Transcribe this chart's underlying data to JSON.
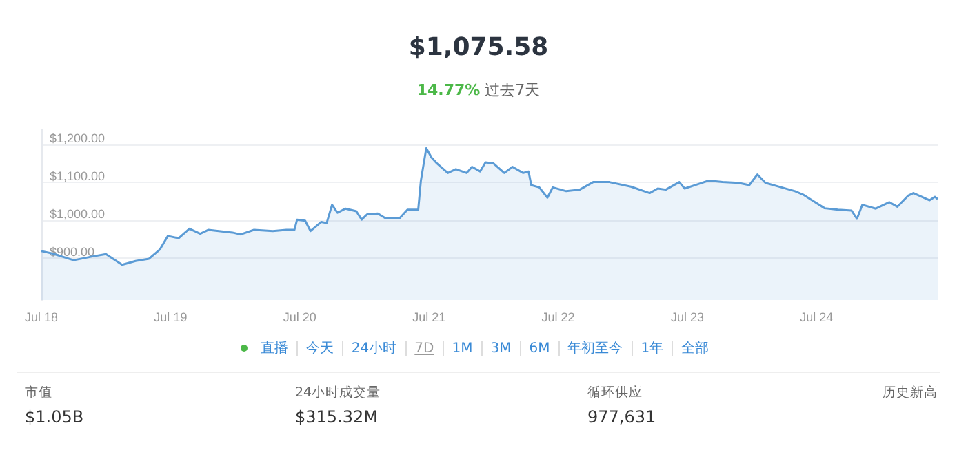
{
  "chart_data": {
    "type": "area",
    "title": "$1,075.58",
    "subtitle": "14.77% 过去7天",
    "annotations": [
      "直播",
      "今天",
      "24小时",
      "7D",
      "1M",
      "3M",
      "6M",
      "年初至今",
      "1年",
      "全部",
      "市值",
      "$1.05B",
      "24小时成交量",
      "$315.32M",
      "循环供应",
      "977,631",
      "历史新高"
    ],
    "x": [
      "--07-18T00:00",
      "--07-18T02:00",
      "--07-18T06:00",
      "--07-18T09:30",
      "--07-18T12:00",
      "--07-18T15:00",
      "--07-18T17:30",
      "--07-18T20:00",
      "--07-18T22:00",
      "--07-18T23:30",
      "--07-19T01:30",
      "--07-19T03:30",
      "--07-19T05:30",
      "--07-19T07:00",
      "--07-19T11:30",
      "--07-19T13:00",
      "--07-19T15:30",
      "--07-19T19:00",
      "--07-19T21:30",
      "--07-19T23:00",
      "--07-19T23:30",
      "--07-20T01:00",
      "--07-20T02:00",
      "--07-20T04:00",
      "--07-20T05:00",
      "--07-20T06:00",
      "--07-20T07:00",
      "--07-20T08:30",
      "--07-20T10:30",
      "--07-20T11:30",
      "--07-20T12:30",
      "--07-20T14:30",
      "--07-20T16:00",
      "--07-20T18:30",
      "--07-20T20:00",
      "--07-20T22:00",
      "--07-20T22:30",
      "--07-20T23:30",
      "--07-21T00:30",
      "--07-21T01:30",
      "--07-21T03:30",
      "--07-21T05:00",
      "--07-21T07:00",
      "--07-21T08:00",
      "--07-21T09:30",
      "--07-21T10:30",
      "--07-21T12:00",
      "--07-21T14:00",
      "--07-21T15:30",
      "--07-21T17:30",
      "--07-21T18:30",
      "--07-21T19:00",
      "--07-21T20:30",
      "--07-21T22:00",
      "--07-21T23:00",
      "--07-22T01:30",
      "--07-22T04:00",
      "--07-22T06:30",
      "--07-22T09:30",
      "--07-22T13:30",
      "--07-22T17:00",
      "--07-22T18:30",
      "--07-22T20:00",
      "--07-22T22:30",
      "--07-22T23:30",
      "--07-23T04:00",
      "--07-23T06:30",
      "--07-23T09:30",
      "--07-23T11:30",
      "--07-23T13:00",
      "--07-23T14:30",
      "--07-23T17:30",
      "--07-23T20:00",
      "--07-23T21:30",
      "--07-23T23:30",
      "--07-24T01:30",
      "--07-24T04:00",
      "--07-24T06:30",
      "--07-24T07:30",
      "--07-24T08:30",
      "--07-24T11:00",
      "--07-24T13:30",
      "--07-24T15:00",
      "--07-24T17:00",
      "--07-24T18:00",
      "--07-24T21:00",
      "--07-24T22:00",
      "--07-24T22:30"
    ],
    "values": [
      919,
      913,
      895,
      905,
      911,
      883,
      893,
      899,
      923,
      959,
      953,
      978,
      965,
      975,
      968,
      963,
      975,
      972,
      975,
      975,
      1002,
      999,
      972,
      996,
      993,
      1041,
      1020,
      1031,
      1024,
      1002,
      1016,
      1018,
      1005,
      1005,
      1028,
      1028,
      1105,
      1190,
      1165,
      1150,
      1125,
      1135,
      1125,
      1141,
      1129,
      1153,
      1150,
      1125,
      1141,
      1125,
      1129,
      1093,
      1087,
      1060,
      1087,
      1077,
      1081,
      1101,
      1101,
      1089,
      1072,
      1084,
      1081,
      1101,
      1084,
      1105,
      1101,
      1099,
      1093,
      1121,
      1099,
      1087,
      1077,
      1068,
      1050,
      1032,
      1028,
      1026,
      1004,
      1041,
      1031,
      1048,
      1036,
      1065,
      1072,
      1053,
      1062,
      1056
    ],
    "color": "#5b9bd5",
    "xlim": [
      "--07-18T00:00",
      "--07-24T22:30"
    ],
    "xticks": [
      {
        "value": "--07-18",
        "label": "Jul 18"
      },
      {
        "value": "--07-19",
        "label": "Jul 19"
      },
      {
        "value": "--07-20",
        "label": "Jul 20"
      },
      {
        "value": "--07-21",
        "label": "Jul 21"
      },
      {
        "value": "--07-22",
        "label": "Jul 22"
      },
      {
        "value": "--07-23",
        "label": "Jul 23"
      },
      {
        "value": "--07-24",
        "label": "Jul 24"
      }
    ],
    "ylim": [
      790,
      1240
    ],
    "yticks": [
      {
        "value": 900,
        "label": "$900.00"
      },
      {
        "value": 1000,
        "label": "$1,000.00"
      },
      {
        "value": 1100,
        "label": "$1,100.00"
      },
      {
        "value": 1200,
        "label": "$1,200.00"
      }
    ],
    "grid": "y",
    "marker": "none"
  }
}
